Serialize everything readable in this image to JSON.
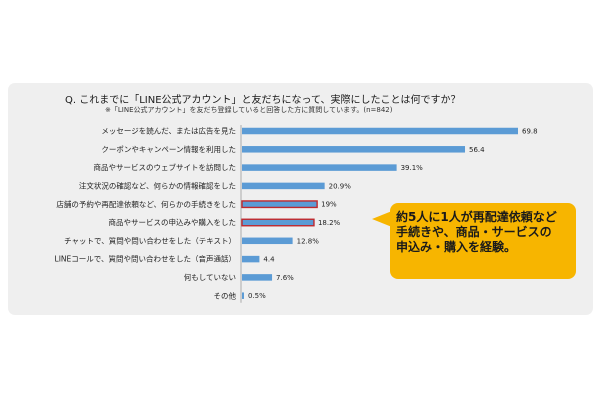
{
  "question": "Q. これまでに「LINE公式アカウント」と友だちになって、実際にしたことは何ですか？",
  "note": "※「LINE公式アカウント」を友だち登録していると回答した方に質問しています。(n=842)",
  "callout": "約5人に1人が再配達依頼など\n手続きや、商品・サービスの\n申込み・購入を経験。",
  "colors": {
    "bar": "#5b9bd5",
    "highlight": "#c0282d",
    "callout": "#f7b500"
  },
  "chart_data": {
    "type": "bar",
    "orientation": "horizontal",
    "unit": "%",
    "xlim": [
      0,
      80
    ],
    "categories": [
      "メッセージを読んだ、または広告を見た",
      "クーポンやキャンペーン情報を利用した",
      "商品やサービスのウェブサイトを訪問した",
      "注文状況の確認など、何らかの情報確認をした",
      "店舗の予約や再配達依頼など、何らかの手続きをした",
      "商品やサービスの申込みや購入をした",
      "チャットで、質問や問い合わせをした（テキスト）",
      "LINEコールで、質問や問い合わせをした（音声通話）",
      "何もしていない",
      "その他"
    ],
    "values": [
      69.8,
      56.4,
      39.1,
      20.9,
      19,
      18.2,
      12.8,
      4.4,
      7.6,
      0.5
    ],
    "value_labels": [
      "69.8",
      "56.4",
      "39.1%",
      "20.9%",
      "19%",
      "18.2%",
      "12.8%",
      "4.4",
      "7.6%",
      "0.5%"
    ],
    "highlighted": [
      4,
      5
    ]
  }
}
